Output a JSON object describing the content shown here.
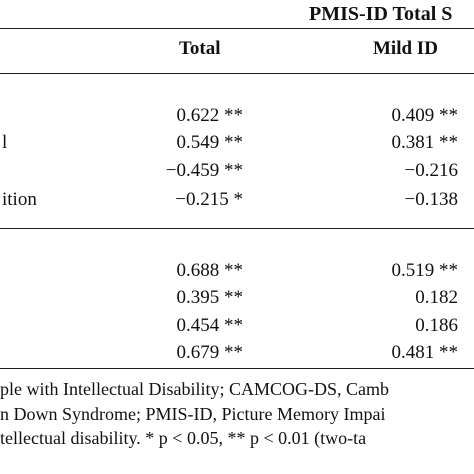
{
  "table": {
    "header": {
      "group_title": "PMIS-ID Total S",
      "columns": [
        "Total",
        "Mild ID"
      ]
    },
    "section1": [
      {
        "label": "",
        "total": "0.622 **",
        "mild": "0.409 **"
      },
      {
        "label": "l",
        "total": "0.549 **",
        "mild": "0.381 **"
      },
      {
        "label": "",
        "total": "−0.459 **",
        "mild": "−0.216"
      },
      {
        "label": "ition",
        "total": "−0.215 *",
        "mild": "−0.138"
      }
    ],
    "section2": [
      {
        "label": "",
        "total": "0.688 **",
        "mild": "0.519 **"
      },
      {
        "label": "",
        "total": "0.395 **",
        "mild": "0.182"
      },
      {
        "label": "",
        "total": "0.454 **",
        "mild": "0.186"
      },
      {
        "label": "",
        "total": "0.679 **",
        "mild": "0.481 **"
      }
    ]
  },
  "footnote": {
    "line1": "ple with Intellectual Disability; CAMCOG-DS, Camb",
    "line2": "n Down Syndrome; PMIS-ID, Picture Memory Impai",
    "line3": "tellectual disability.  * p < 0.05, ** p < 0.01 (two-ta"
  }
}
